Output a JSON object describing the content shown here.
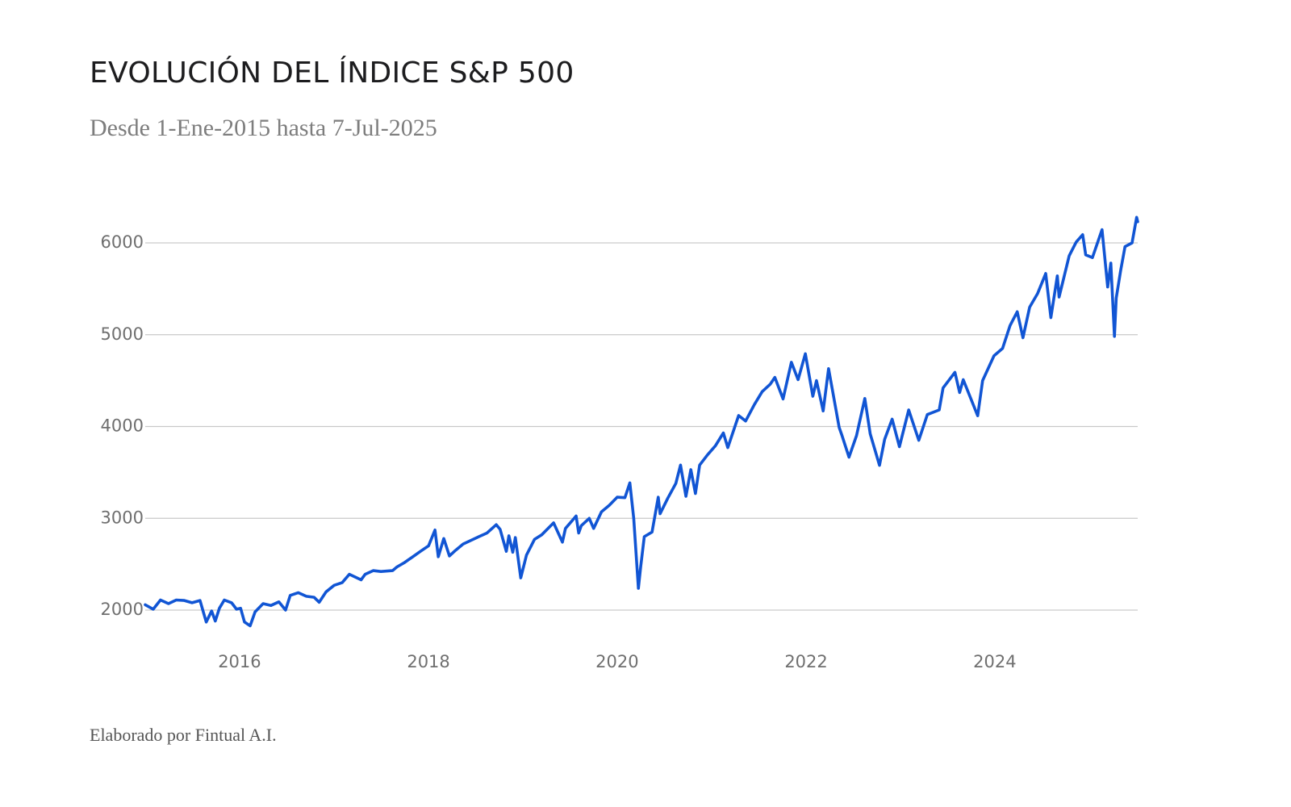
{
  "colors": {
    "line": "#1155d4",
    "grid": "#c9c9c9",
    "title": "#1d1d1f",
    "subtitle": "#7d7d7d",
    "tick": "#6f6f6f"
  },
  "chart_data": {
    "type": "line",
    "title": "EVOLUCIÓN DEL ÍNDICE S&P 500",
    "subtitle": "Desde 1-Ene-2015 hasta 7-Jul-2025",
    "footer": "Elaborado por Fintual A.I.",
    "xlabel": "",
    "ylabel": "",
    "grid": true,
    "legend": "none",
    "x_range": [
      "2015-01-01",
      "2025-07-07"
    ],
    "ylim": [
      1700,
      6350
    ],
    "y_ticks": [
      2000,
      3000,
      4000,
      5000,
      6000
    ],
    "x_tick_labels": [
      "2016",
      "2018",
      "2020",
      "2022",
      "2024"
    ],
    "series": [
      {
        "points": [
          [
            "2015-01-01",
            2058
          ],
          [
            "2015-02-01",
            2010
          ],
          [
            "2015-03-01",
            2110
          ],
          [
            "2015-04-01",
            2070
          ],
          [
            "2015-05-01",
            2110
          ],
          [
            "2015-06-01",
            2105
          ],
          [
            "2015-07-01",
            2080
          ],
          [
            "2015-08-01",
            2105
          ],
          [
            "2015-08-25",
            1870
          ],
          [
            "2015-09-15",
            1990
          ],
          [
            "2015-09-29",
            1880
          ],
          [
            "2015-10-15",
            2020
          ],
          [
            "2015-11-03",
            2110
          ],
          [
            "2015-12-01",
            2080
          ],
          [
            "2015-12-20",
            2010
          ],
          [
            "2016-01-05",
            2020
          ],
          [
            "2016-01-20",
            1870
          ],
          [
            "2016-02-11",
            1829
          ],
          [
            "2016-03-01",
            1980
          ],
          [
            "2016-04-01",
            2070
          ],
          [
            "2016-05-01",
            2050
          ],
          [
            "2016-06-01",
            2090
          ],
          [
            "2016-06-27",
            2000
          ],
          [
            "2016-07-15",
            2160
          ],
          [
            "2016-08-15",
            2190
          ],
          [
            "2016-09-15",
            2150
          ],
          [
            "2016-10-15",
            2140
          ],
          [
            "2016-11-04",
            2085
          ],
          [
            "2016-12-01",
            2200
          ],
          [
            "2017-01-01",
            2270
          ],
          [
            "2017-02-01",
            2300
          ],
          [
            "2017-03-01",
            2390
          ],
          [
            "2017-04-15",
            2330
          ],
          [
            "2017-05-01",
            2390
          ],
          [
            "2017-06-01",
            2430
          ],
          [
            "2017-07-01",
            2420
          ],
          [
            "2017-08-15",
            2430
          ],
          [
            "2017-09-01",
            2470
          ],
          [
            "2017-10-01",
            2520
          ],
          [
            "2017-11-01",
            2580
          ],
          [
            "2017-12-01",
            2640
          ],
          [
            "2018-01-01",
            2700
          ],
          [
            "2018-01-26",
            2872
          ],
          [
            "2018-02-08",
            2581
          ],
          [
            "2018-03-01",
            2780
          ],
          [
            "2018-03-23",
            2590
          ],
          [
            "2018-04-15",
            2650
          ],
          [
            "2018-05-15",
            2720
          ],
          [
            "2018-06-15",
            2760
          ],
          [
            "2018-07-15",
            2800
          ],
          [
            "2018-08-15",
            2840
          ],
          [
            "2018-09-20",
            2930
          ],
          [
            "2018-10-05",
            2880
          ],
          [
            "2018-10-29",
            2640
          ],
          [
            "2018-11-08",
            2810
          ],
          [
            "2018-11-23",
            2630
          ],
          [
            "2018-12-03",
            2790
          ],
          [
            "2018-12-24",
            2351
          ],
          [
            "2019-01-15",
            2600
          ],
          [
            "2019-02-15",
            2770
          ],
          [
            "2019-03-15",
            2820
          ],
          [
            "2019-04-30",
            2950
          ],
          [
            "2019-06-03",
            2740
          ],
          [
            "2019-06-15",
            2890
          ],
          [
            "2019-07-26",
            3025
          ],
          [
            "2019-08-05",
            2840
          ],
          [
            "2019-08-15",
            2920
          ],
          [
            "2019-09-15",
            3000
          ],
          [
            "2019-10-02",
            2890
          ],
          [
            "2019-11-01",
            3070
          ],
          [
            "2019-12-01",
            3140
          ],
          [
            "2020-01-01",
            3230
          ],
          [
            "2020-01-31",
            3225
          ],
          [
            "2020-02-19",
            3386
          ],
          [
            "2020-03-05",
            3000
          ],
          [
            "2020-03-23",
            2237
          ],
          [
            "2020-04-01",
            2470
          ],
          [
            "2020-04-15",
            2800
          ],
          [
            "2020-05-15",
            2850
          ],
          [
            "2020-06-08",
            3230
          ],
          [
            "2020-06-15",
            3050
          ],
          [
            "2020-07-15",
            3220
          ],
          [
            "2020-08-15",
            3380
          ],
          [
            "2020-09-02",
            3580
          ],
          [
            "2020-09-23",
            3240
          ],
          [
            "2020-10-12",
            3530
          ],
          [
            "2020-10-30",
            3270
          ],
          [
            "2020-11-15",
            3580
          ],
          [
            "2020-12-15",
            3690
          ],
          [
            "2021-01-15",
            3790
          ],
          [
            "2021-02-15",
            3930
          ],
          [
            "2021-03-04",
            3770
          ],
          [
            "2021-04-15",
            4120
          ],
          [
            "2021-05-12",
            4060
          ],
          [
            "2021-06-15",
            4240
          ],
          [
            "2021-07-15",
            4380
          ],
          [
            "2021-08-15",
            4460
          ],
          [
            "2021-09-02",
            4535
          ],
          [
            "2021-10-04",
            4300
          ],
          [
            "2021-11-05",
            4700
          ],
          [
            "2021-12-01",
            4510
          ],
          [
            "2021-12-29",
            4793
          ],
          [
            "2022-01-27",
            4330
          ],
          [
            "2022-02-10",
            4500
          ],
          [
            "2022-03-08",
            4170
          ],
          [
            "2022-03-29",
            4630
          ],
          [
            "2022-05-09",
            3990
          ],
          [
            "2022-05-20",
            3900
          ],
          [
            "2022-06-16",
            3666
          ],
          [
            "2022-07-15",
            3900
          ],
          [
            "2022-08-16",
            4305
          ],
          [
            "2022-09-06",
            3920
          ],
          [
            "2022-10-12",
            3577
          ],
          [
            "2022-11-01",
            3860
          ],
          [
            "2022-11-30",
            4080
          ],
          [
            "2022-12-28",
            3780
          ],
          [
            "2023-02-02",
            4180
          ],
          [
            "2023-03-13",
            3850
          ],
          [
            "2023-04-15",
            4130
          ],
          [
            "2023-05-31",
            4180
          ],
          [
            "2023-06-15",
            4420
          ],
          [
            "2023-07-31",
            4590
          ],
          [
            "2023-08-18",
            4370
          ],
          [
            "2023-09-01",
            4510
          ],
          [
            "2023-10-27",
            4117
          ],
          [
            "2023-11-15",
            4500
          ],
          [
            "2023-12-29",
            4770
          ],
          [
            "2024-01-31",
            4850
          ],
          [
            "2024-02-29",
            5100
          ],
          [
            "2024-03-28",
            5250
          ],
          [
            "2024-04-19",
            4967
          ],
          [
            "2024-05-15",
            5300
          ],
          [
            "2024-06-15",
            5450
          ],
          [
            "2024-07-16",
            5667
          ],
          [
            "2024-08-05",
            5186
          ],
          [
            "2024-08-30",
            5640
          ],
          [
            "2024-09-06",
            5410
          ],
          [
            "2024-10-15",
            5860
          ],
          [
            "2024-11-11",
            6010
          ],
          [
            "2024-12-06",
            6090
          ],
          [
            "2024-12-18",
            5870
          ],
          [
            "2025-01-13",
            5840
          ],
          [
            "2025-02-19",
            6144
          ],
          [
            "2025-03-13",
            5520
          ],
          [
            "2025-03-25",
            5780
          ],
          [
            "2025-04-08",
            4982
          ],
          [
            "2025-04-15",
            5400
          ],
          [
            "2025-05-02",
            5700
          ],
          [
            "2025-05-19",
            5960
          ],
          [
            "2025-06-15",
            6000
          ],
          [
            "2025-07-03",
            6279
          ],
          [
            "2025-07-07",
            6230
          ]
        ]
      }
    ]
  }
}
